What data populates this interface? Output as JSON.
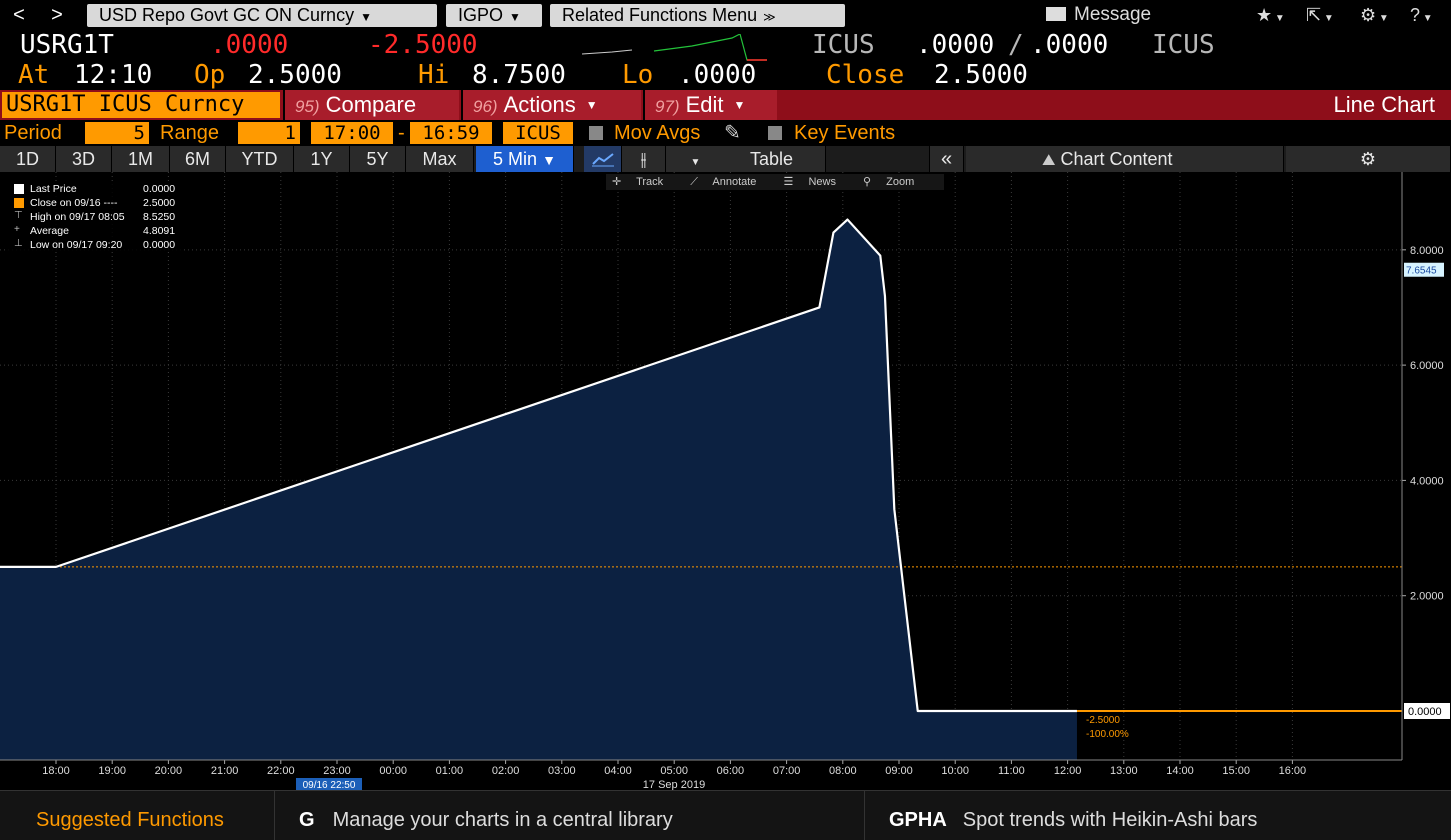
{
  "topbar": {
    "back": "<",
    "forward": ">",
    "security_menu": "USD Repo Govt GC ON Curncy",
    "source_menu": "IGPO",
    "related_menu": "Related Functions Menu",
    "message_label": "Message"
  },
  "quote": {
    "ticker": "USRG1T",
    "last": ".0000",
    "change": "-2.5000",
    "source": "ICUS",
    "bid": ".0000",
    "separator": "/",
    "ask": ".0000",
    "source2": "ICUS",
    "time_label": "At",
    "time": "12:10",
    "open_label": "Op",
    "open": "2.5000",
    "high_label": "Hi",
    "high": "8.7500",
    "low_label": "Lo",
    "low": ".0000",
    "close_label": "Close",
    "close": "2.5000"
  },
  "funcbar": {
    "ticker_field": "USRG1T ICUS Curncy",
    "compare_num": "95)",
    "compare": "Compare",
    "actions_num": "96)",
    "actions": "Actions",
    "edit_num": "97)",
    "edit": "Edit",
    "chart_type": "Line Chart"
  },
  "period_row": {
    "period_label": "Period",
    "period_value": "5",
    "range_label": "Range",
    "range_value": "1",
    "start_time": "17:00",
    "dash": "-",
    "end_time": "16:59",
    "source": "ICUS",
    "mov_avgs": "Mov Avgs",
    "key_events": "Key Events"
  },
  "toolbar": {
    "ranges": [
      "1D",
      "3D",
      "1M",
      "6M",
      "YTD",
      "1Y",
      "5Y",
      "Max"
    ],
    "interval": "5 Min",
    "table": "Table",
    "chart_content": "Chart Content"
  },
  "chart_tools": [
    "Track",
    "Annotate",
    "News",
    "Zoom"
  ],
  "legend": [
    {
      "name": "Last Price",
      "value": "0.0000",
      "color": "#ffffff"
    },
    {
      "name": "Close on 09/16 ----",
      "value": "2.5000",
      "color": "#ff9a00"
    },
    {
      "name": "High on 09/17 08:05",
      "value": "8.5250",
      "color": "#bbbbbb"
    },
    {
      "name": "Average",
      "value": "4.8091",
      "color": "#bbbbbb"
    },
    {
      "name": "Low on 09/17 09:20",
      "value": "0.0000",
      "color": "#bbbbbb"
    }
  ],
  "chart_data": {
    "type": "area",
    "x_ticks": [
      "18:00",
      "19:00",
      "20:00",
      "21:00",
      "22:00",
      "23:00",
      "00:00",
      "01:00",
      "02:00",
      "03:00",
      "04:00",
      "05:00",
      "06:00",
      "07:00",
      "08:00",
      "09:00",
      "10:00",
      "11:00",
      "12:00",
      "13:00",
      "14:00",
      "15:00",
      "16:00"
    ],
    "y_ticks": [
      "2.0000",
      "4.0000",
      "6.0000",
      "8.0000"
    ],
    "ylim": [
      -0.85,
      9.35
    ],
    "series": [
      {
        "name": "Last Price",
        "x": [
          "09/16 17:00",
          "09/16 18:00",
          "09/17 07:35",
          "09/17 07:50",
          "09/17 08:05",
          "09/17 08:40",
          "09/17 08:45",
          "09/17 08:55",
          "09/17 09:20",
          "09/17 12:10"
        ],
        "y": [
          2.5,
          2.5,
          7.0,
          8.3,
          8.525,
          7.9,
          7.2,
          3.5,
          0.0,
          0.0
        ]
      }
    ],
    "reference_line": {
      "name": "Close on 09/16",
      "value": 2.5
    },
    "current_marker": "0.0000",
    "crosshair_label": "7.6545",
    "change_label": "-2.5000",
    "change_pct_label": "-100.00%",
    "date_label_left": "09/16 22:50",
    "date_label_center": "17 Sep 2019",
    "colors": {
      "line": "#ffffff",
      "fill": "#0c2141",
      "close_line": "#ff9a00",
      "grid": "#3a3a3a"
    }
  },
  "bottombar": {
    "suggested": "Suggested Functions",
    "g_code": "G",
    "g_text": "Manage your charts in a central library",
    "gpha_code": "GPHA",
    "gpha_text": "Spot trends with Heikin-Ashi bars"
  }
}
